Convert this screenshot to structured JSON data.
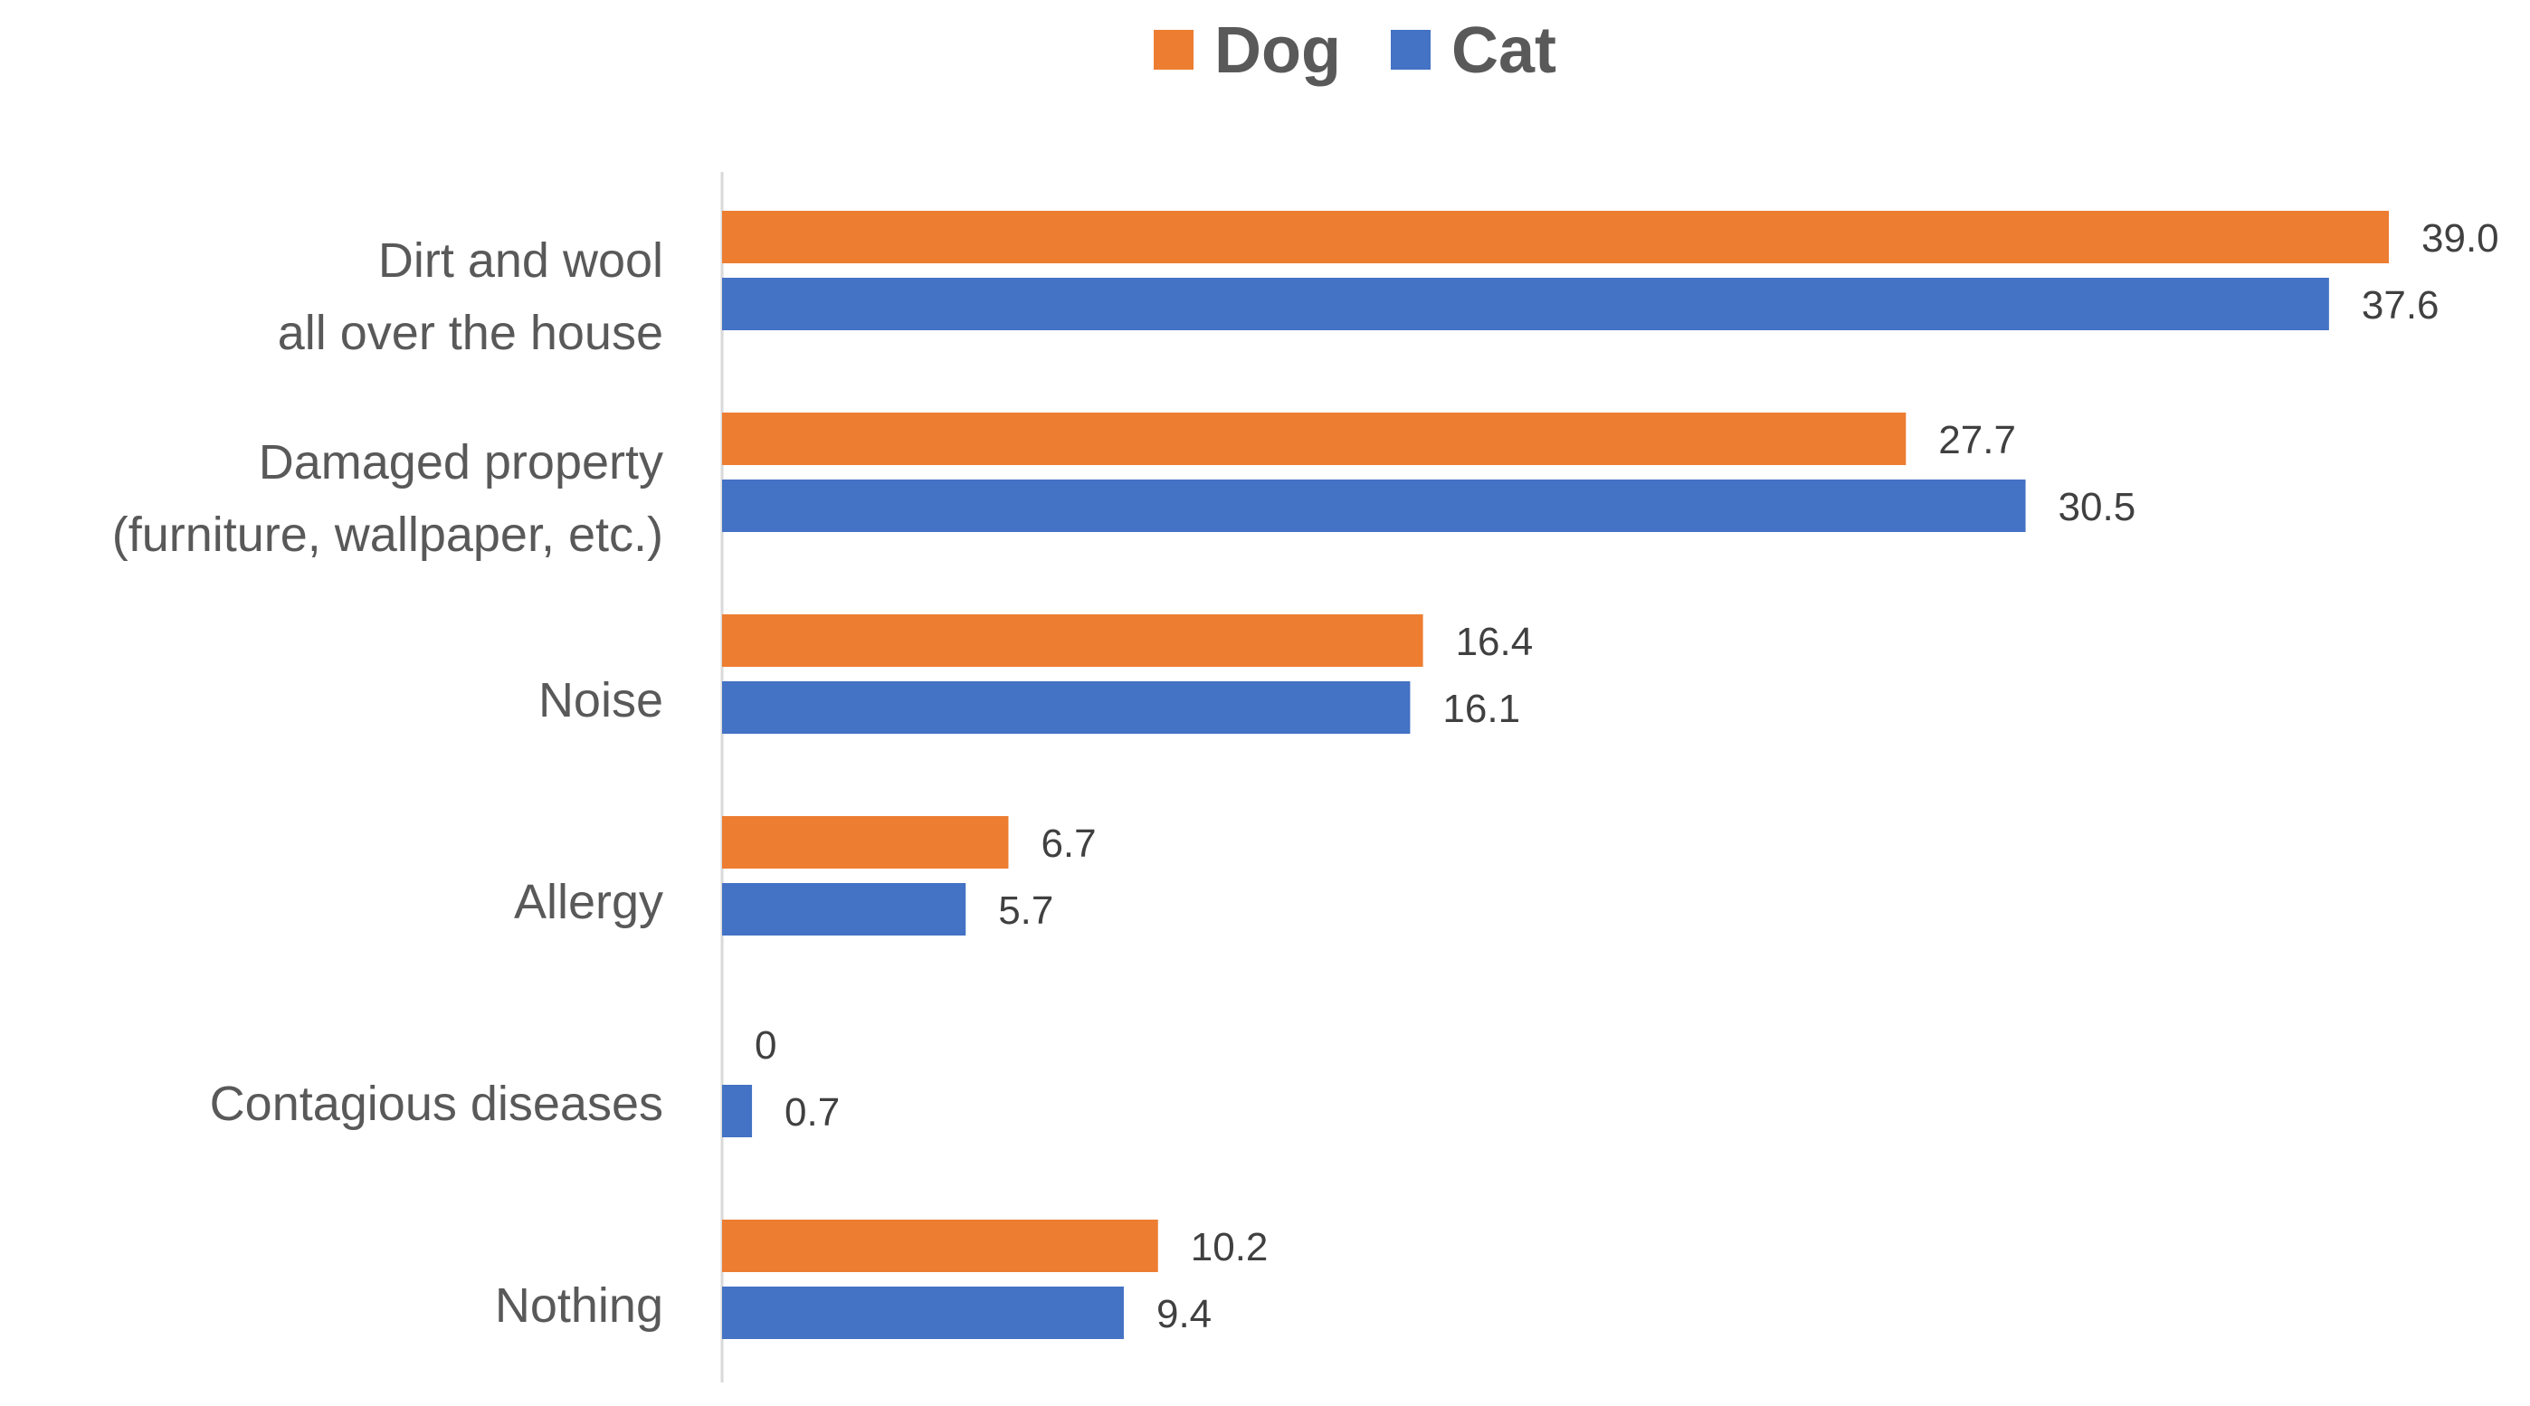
{
  "colors": {
    "dog": "#ED7D31",
    "cat": "#4472C4",
    "axis": "#D9D9D9",
    "text": "#595959"
  },
  "chart_data": {
    "type": "bar",
    "orientation": "horizontal",
    "title": "",
    "xlabel": "",
    "ylabel": "",
    "legend_position": "top-center",
    "grid": false,
    "xlim": [
      0,
      39
    ],
    "categories": [
      [
        "Dirt and wool",
        "all over the house"
      ],
      [
        "Damaged property",
        "(furniture, wallpaper, etc.)"
      ],
      [
        "Noise"
      ],
      [
        "Allergy"
      ],
      [
        "Contagious diseases"
      ],
      [
        "Nothing"
      ]
    ],
    "series": [
      {
        "name": "Dog",
        "color": "#ED7D31",
        "values": [
          39.0,
          27.7,
          16.4,
          6.7,
          0,
          10.2
        ],
        "labels": [
          "39.0",
          "27.7",
          "16.4",
          "6.7",
          "0",
          "10.2"
        ]
      },
      {
        "name": "Cat",
        "color": "#4472C4",
        "values": [
          37.6,
          30.5,
          16.1,
          5.7,
          0.7,
          9.4
        ],
        "labels": [
          "37.6",
          "30.5",
          "16.1",
          "5.7",
          "0.7",
          "9.4"
        ]
      }
    ]
  }
}
